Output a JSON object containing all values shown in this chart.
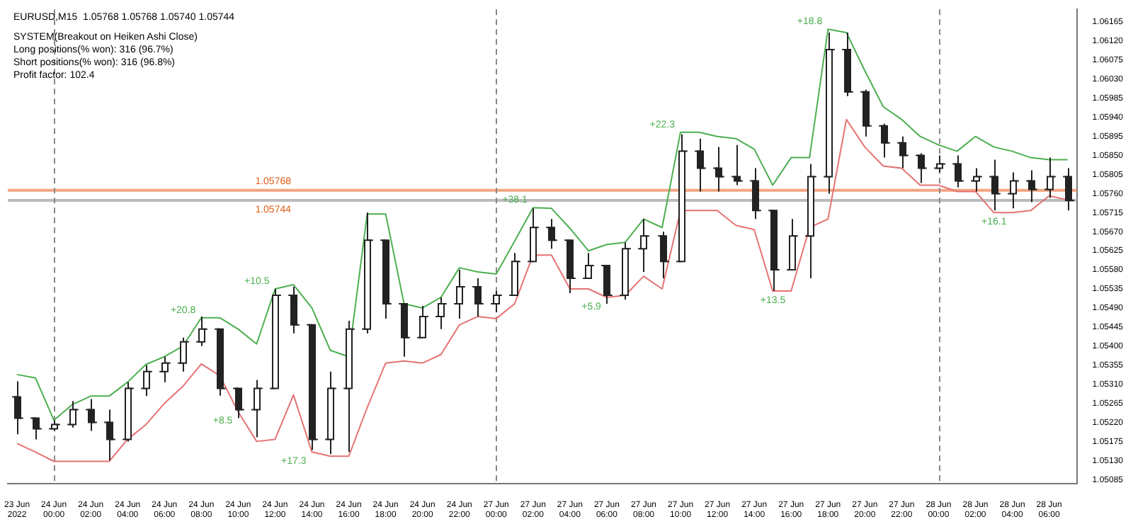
{
  "chart_data": {
    "type": "candlestick",
    "title": "EURUSD,M15  1.05768 1.05768 1.05740 1.05744",
    "categories": [
      "23 Jun 2022",
      null,
      "24 Jun 00:00",
      null,
      "24 Jun 02:00",
      null,
      "24 Jun 04:00",
      null,
      "24 Jun 06:00",
      null,
      "24 Jun 08:00",
      null,
      "24 Jun 10:00",
      null,
      "24 Jun 12:00",
      null,
      "24 Jun 14:00",
      null,
      "24 Jun 16:00",
      null,
      "24 Jun 18:00",
      null,
      "24 Jun 20:00",
      null,
      "24 Jun 22:00",
      null,
      "27 Jun 00:00",
      null,
      "27 Jun 02:00",
      null,
      "27 Jun 04:00",
      null,
      "27 Jun 06:00",
      null,
      "27 Jun 08:00",
      null,
      "27 Jun 10:00",
      null,
      "27 Jun 12:00",
      null,
      "27 Jun 14:00",
      null,
      "27 Jun 16:00",
      null,
      "27 Jun 18:00",
      null,
      "27 Jun 20:00",
      null,
      "27 Jun 22:00",
      null,
      "28 Jun 00:00",
      null,
      "28 Jun 02:00",
      null,
      "28 Jun 04:00",
      null,
      "28 Jun 06:00",
      null
    ],
    "ohlc": [
      [
        1.0528,
        1.05317,
        1.05192,
        1.0523
      ],
      [
        1.0523,
        1.0523,
        1.0518,
        1.05205
      ],
      [
        1.05205,
        1.05225,
        1.052,
        1.05215
      ],
      [
        1.05215,
        1.0527,
        1.05208,
        1.0525
      ],
      [
        1.0525,
        1.05275,
        1.052,
        1.0522
      ],
      [
        1.0522,
        1.0525,
        1.0513,
        1.0518
      ],
      [
        1.0518,
        1.05315,
        1.05175,
        1.053
      ],
      [
        1.053,
        1.05355,
        1.05282,
        1.0534
      ],
      [
        1.0534,
        1.05375,
        1.05315,
        1.0536
      ],
      [
        1.0536,
        1.0542,
        1.0534,
        1.0541
      ],
      [
        1.0541,
        1.0547,
        1.054,
        1.0544
      ],
      [
        1.0544,
        1.0544,
        1.05283,
        1.053
      ],
      [
        1.053,
        1.053,
        1.0523,
        1.0525
      ],
      [
        1.0525,
        1.0532,
        1.05185,
        1.053
      ],
      [
        1.053,
        1.05535,
        1.053,
        1.0552
      ],
      [
        1.0552,
        1.0554,
        1.0543,
        1.0545
      ],
      [
        1.0545,
        1.0545,
        1.05155,
        1.0518
      ],
      [
        1.0518,
        1.0534,
        1.05145,
        1.053
      ],
      [
        1.053,
        1.0546,
        1.0515,
        1.0544
      ],
      [
        1.0544,
        1.05715,
        1.0543,
        1.0565
      ],
      [
        1.0565,
        1.0565,
        1.05465,
        1.055
      ],
      [
        1.055,
        1.055,
        1.05375,
        1.0542
      ],
      [
        1.0542,
        1.05495,
        1.0542,
        1.0547
      ],
      [
        1.0547,
        1.05515,
        1.0544,
        1.055
      ],
      [
        1.055,
        1.0558,
        1.05465,
        1.0554
      ],
      [
        1.0554,
        1.0556,
        1.0547,
        1.055
      ],
      [
        1.055,
        1.0553,
        1.0548,
        1.0552
      ],
      [
        1.0552,
        1.0562,
        1.0552,
        1.056
      ],
      [
        1.056,
        1.05725,
        1.056,
        1.0568
      ],
      [
        1.0568,
        1.057,
        1.0563,
        1.0565
      ],
      [
        1.0565,
        1.0565,
        1.05525,
        1.0556
      ],
      [
        1.0556,
        1.0562,
        1.0556,
        1.0559
      ],
      [
        1.0559,
        1.0559,
        1.055,
        1.0552
      ],
      [
        1.0552,
        1.05645,
        1.0551,
        1.0563
      ],
      [
        1.0563,
        1.057,
        1.05575,
        1.0566
      ],
      [
        1.0566,
        1.0567,
        1.0556,
        1.056
      ],
      [
        1.056,
        1.059,
        1.056,
        1.0586
      ],
      [
        1.0586,
        1.0589,
        1.05765,
        1.0582
      ],
      [
        1.0582,
        1.0587,
        1.05765,
        1.058
      ],
      [
        1.058,
        1.05875,
        1.0578,
        1.0579
      ],
      [
        1.0579,
        1.0582,
        1.057,
        1.0572
      ],
      [
        1.0572,
        1.0572,
        1.0553,
        1.0558
      ],
      [
        1.0558,
        1.057,
        1.0558,
        1.0566
      ],
      [
        1.0566,
        1.0583,
        1.0556,
        1.058
      ],
      [
        1.058,
        1.0614,
        1.0576,
        1.061
      ],
      [
        1.061,
        1.0614,
        1.0599,
        1.06
      ],
      [
        1.06,
        1.06005,
        1.05895,
        1.0592
      ],
      [
        1.0592,
        1.05925,
        1.05845,
        1.0588
      ],
      [
        1.0588,
        1.05895,
        1.0582,
        1.0585
      ],
      [
        1.0585,
        1.05855,
        1.05785,
        1.0582
      ],
      [
        1.0582,
        1.0585,
        1.0581,
        1.0583
      ],
      [
        1.0583,
        1.0585,
        1.05775,
        1.0579
      ],
      [
        1.0579,
        1.0582,
        1.05765,
        1.058
      ],
      [
        1.058,
        1.0584,
        1.0572,
        1.0576
      ],
      [
        1.0576,
        1.0581,
        1.05725,
        1.0579
      ],
      [
        1.0579,
        1.05815,
        1.0574,
        1.0577
      ],
      [
        1.0577,
        1.05845,
        1.0575,
        1.058
      ],
      [
        1.058,
        1.0582,
        1.0572,
        1.05744
      ]
    ],
    "series": [
      {
        "type": "line",
        "color": "#4caf50",
        "values": [
          1.05333,
          1.05325,
          1.05225,
          1.05262,
          1.05282,
          1.05282,
          1.05315,
          1.05357,
          1.05375,
          1.054,
          1.05467,
          1.05467,
          1.0544,
          1.05405,
          1.05535,
          1.05545,
          1.0549,
          1.0539,
          1.05375,
          1.05712,
          1.05712,
          1.055,
          1.0549,
          1.05515,
          1.05585,
          1.05575,
          1.0557,
          1.05648,
          1.05727,
          1.05725,
          1.05678,
          1.05625,
          1.0564,
          1.05645,
          1.057,
          1.0568,
          1.05905,
          1.05905,
          1.05895,
          1.0589,
          1.05865,
          1.0578,
          1.05845,
          1.05845,
          1.06148,
          1.0614,
          1.0605,
          1.05965,
          1.05935,
          1.05895,
          1.05875,
          1.0586,
          1.05895,
          1.0587,
          1.0586,
          1.05845,
          1.0584,
          1.0584
        ]
      },
      {
        "type": "line",
        "color": "#e57373",
        "values": [
          1.0517,
          1.0515,
          1.05128,
          1.05128,
          1.05128,
          1.05128,
          1.0518,
          1.05215,
          1.05265,
          1.05305,
          1.05358,
          1.0533,
          1.05245,
          1.05175,
          1.0518,
          1.05285,
          1.0515,
          1.0514,
          1.0514,
          1.05255,
          1.0536,
          1.05365,
          1.0536,
          1.0538,
          1.0545,
          1.0547,
          1.05465,
          1.055,
          1.05615,
          1.05615,
          1.05535,
          1.05535,
          1.05515,
          1.0552,
          1.05565,
          1.05535,
          1.0572,
          1.0572,
          1.0572,
          1.05685,
          1.05675,
          1.0553,
          1.0553,
          1.0568,
          1.057,
          1.05935,
          1.0587,
          1.05825,
          1.0582,
          1.0578,
          1.0578,
          1.05765,
          1.05765,
          1.05715,
          1.05715,
          1.0572,
          1.05755,
          1.05745
        ]
      }
    ],
    "ylim": [
      1.05075,
      1.06195
    ],
    "yticks": [
      1.05085,
      {
        "value": 1.0513,
        "label": "1.05130"
      },
      1.05175,
      {
        "value": 1.0522,
        "label": "1.05220"
      },
      1.05265,
      {
        "value": 1.0531,
        "label": "1.05310"
      },
      1.05355,
      {
        "value": 1.054,
        "label": "1.05400"
      },
      1.05445,
      {
        "value": 1.0549,
        "label": "1.05490"
      },
      1.05535,
      {
        "value": 1.0558,
        "label": "1.05580"
      },
      1.05625,
      {
        "value": 1.0567,
        "label": "1.05670"
      },
      1.05715,
      {
        "value": 1.0576,
        "label": "1.05760"
      },
      1.05805,
      {
        "value": 1.0585,
        "label": "1.05850"
      },
      1.05895,
      {
        "value": 1.0594,
        "label": "1.05940"
      },
      1.05985,
      {
        "value": 1.0603,
        "label": "1.06030"
      },
      1.06075,
      {
        "value": 1.0612,
        "label": "1.06120"
      },
      1.06165
    ],
    "ref_lines": [
      {
        "axis": "y",
        "value": 1.05768,
        "label": "1.05768",
        "color": "#f4a582"
      },
      {
        "axis": "y",
        "value": 1.05744,
        "label": "1.05744",
        "color": "#bbbbbb"
      },
      {
        "axis": "x",
        "value": "24 Jun 00:00",
        "color": "#888888",
        "line_style": "dashed"
      },
      {
        "axis": "x",
        "value": "27 Jun 00:00",
        "color": "#888888",
        "line_style": "dashed"
      },
      {
        "axis": "x",
        "value": "28 Jun 00:00",
        "color": "#888888",
        "line_style": "dashed"
      }
    ],
    "annotations": [
      "SYSTEM(Breakout on Heiken Ashi Close)",
      "Long positions(% won): 316 (96.7%)",
      "Short positions(% won): 316 (96.8%)",
      "Profit factor: 102.4",
      {
        "text": "+20.8",
        "x": "24 Jun 08:00",
        "y": 1.05467
      },
      {
        "text": "+8.5",
        "x": "24 Jun 10:00",
        "y": 1.05245
      },
      {
        "text": "+10.5",
        "x": "24 Jun 12:00",
        "y": 1.05535
      },
      {
        "text": "+17.3",
        "x": "24 Jun 14:00",
        "y": 1.0515
      },
      {
        "text": "+38.1",
        "x": "27 Jun 02:00",
        "y": 1.05727
      },
      {
        "text": "+5.9",
        "x": "27 Jun 06:00",
        "y": 1.05515
      },
      {
        "text": "+22.3",
        "x": "27 Jun 10:00",
        "y": 1.05905
      },
      {
        "text": "+13.5",
        "x": "27 Jun 16:00",
        "y": 1.0553
      },
      {
        "text": "+18.8",
        "x": "27 Jun 18:00",
        "y": 1.06148
      },
      {
        "text": "+16.1",
        "x": "28 Jun 04:00",
        "y": 1.05715
      }
    ],
    "legend": false,
    "grid": false,
    "marker": "none"
  }
}
